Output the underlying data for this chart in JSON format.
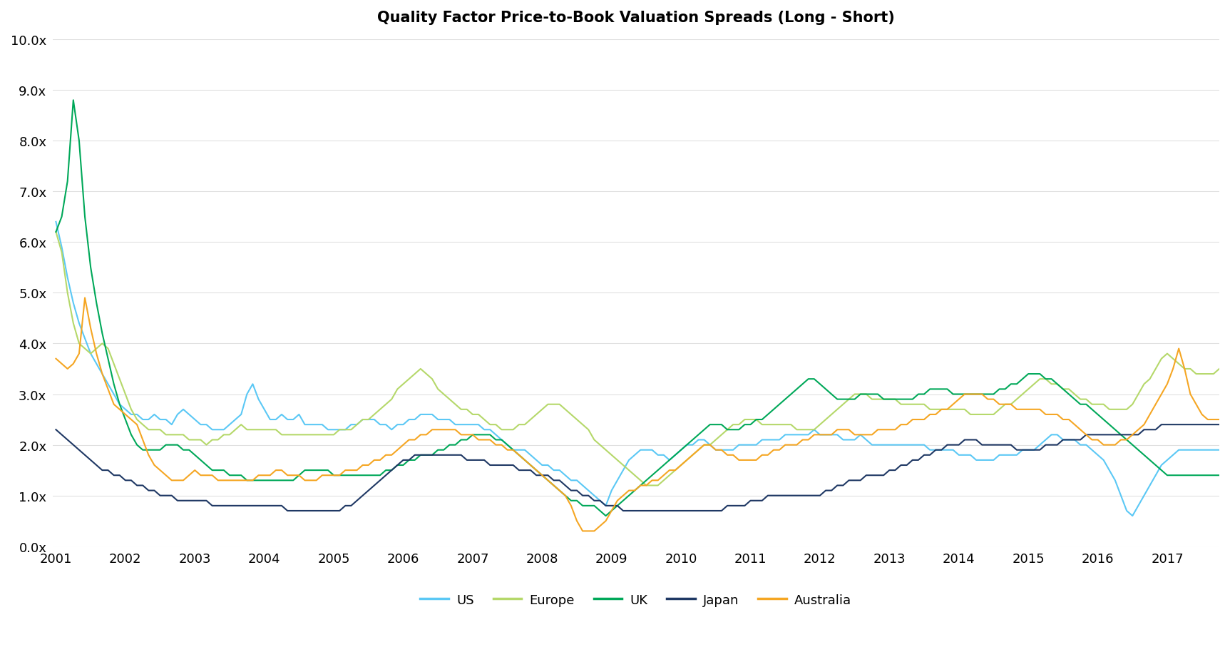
{
  "title": "Quality Factor Price-to-Book Valuation Spreads (Long - Short)",
  "title_fontsize": 15,
  "title_fontweight": "bold",
  "ylim": [
    0.0,
    10.0
  ],
  "yticks": [
    0.0,
    1.0,
    2.0,
    3.0,
    4.0,
    5.0,
    6.0,
    7.0,
    8.0,
    9.0,
    10.0
  ],
  "ytick_labels": [
    "0.0x",
    "1.0x",
    "2.0x",
    "3.0x",
    "4.0x",
    "5.0x",
    "6.0x",
    "7.0x",
    "8.0x",
    "9.0x",
    "10.0x"
  ],
  "background_color": "#ffffff",
  "legend_labels": [
    "US",
    "Europe",
    "UK",
    "Japan",
    "Australia"
  ],
  "line_colors": {
    "US": "#5BC8F5",
    "Europe": "#B5D86A",
    "UK": "#00A859",
    "Japan": "#1F3864",
    "Australia": "#F5A623"
  },
  "line_width": 1.5,
  "series": {
    "US": [
      6.4,
      5.9,
      5.3,
      4.8,
      4.4,
      4.1,
      3.8,
      3.6,
      3.4,
      3.2,
      3.0,
      2.8,
      2.7,
      2.6,
      2.6,
      2.5,
      2.5,
      2.6,
      2.5,
      2.5,
      2.4,
      2.6,
      2.7,
      2.6,
      2.5,
      2.4,
      2.4,
      2.3,
      2.3,
      2.3,
      2.4,
      2.5,
      2.6,
      3.0,
      3.2,
      2.9,
      2.7,
      2.5,
      2.5,
      2.6,
      2.5,
      2.5,
      2.6,
      2.4,
      2.4,
      2.4,
      2.4,
      2.3,
      2.3,
      2.3,
      2.3,
      2.4,
      2.4,
      2.5,
      2.5,
      2.5,
      2.4,
      2.4,
      2.3,
      2.4,
      2.4,
      2.5,
      2.5,
      2.6,
      2.6,
      2.6,
      2.5,
      2.5,
      2.5,
      2.4,
      2.4,
      2.4,
      2.4,
      2.4,
      2.3,
      2.3,
      2.2,
      2.1,
      2.0,
      1.9,
      1.9,
      1.9,
      1.8,
      1.7,
      1.6,
      1.6,
      1.5,
      1.5,
      1.4,
      1.3,
      1.3,
      1.2,
      1.1,
      1.0,
      0.9,
      0.8,
      1.1,
      1.3,
      1.5,
      1.7,
      1.8,
      1.9,
      1.9,
      1.9,
      1.8,
      1.8,
      1.7,
      1.8,
      1.9,
      2.0,
      2.0,
      2.1,
      2.1,
      2.0,
      1.9,
      1.9,
      1.9,
      1.9,
      2.0,
      2.0,
      2.0,
      2.0,
      2.1,
      2.1,
      2.1,
      2.1,
      2.2,
      2.2,
      2.2,
      2.2,
      2.2,
      2.3,
      2.2,
      2.2,
      2.2,
      2.2,
      2.1,
      2.1,
      2.1,
      2.2,
      2.1,
      2.0,
      2.0,
      2.0,
      2.0,
      2.0,
      2.0,
      2.0,
      2.0,
      2.0,
      2.0,
      1.9,
      1.9,
      1.9,
      1.9,
      1.9,
      1.8,
      1.8,
      1.8,
      1.7,
      1.7,
      1.7,
      1.7,
      1.8,
      1.8,
      1.8,
      1.8,
      1.9,
      1.9,
      1.9,
      2.0,
      2.1,
      2.2,
      2.2,
      2.1,
      2.1,
      2.1,
      2.0,
      2.0,
      1.9,
      1.8,
      1.7,
      1.5,
      1.3,
      1.0,
      0.7,
      0.6,
      0.8,
      1.0,
      1.2,
      1.4,
      1.6,
      1.7,
      1.8,
      1.9,
      1.9,
      1.9,
      1.9,
      1.9,
      1.9,
      1.9,
      1.9,
      1.9,
      1.9
    ],
    "Europe": [
      6.2,
      5.8,
      5.0,
      4.4,
      4.0,
      3.9,
      3.8,
      3.9,
      4.0,
      3.9,
      3.6,
      3.3,
      3.0,
      2.7,
      2.5,
      2.4,
      2.3,
      2.3,
      2.3,
      2.2,
      2.2,
      2.2,
      2.2,
      2.1,
      2.1,
      2.1,
      2.0,
      2.1,
      2.1,
      2.2,
      2.2,
      2.3,
      2.4,
      2.3,
      2.3,
      2.3,
      2.3,
      2.3,
      2.3,
      2.2,
      2.2,
      2.2,
      2.2,
      2.2,
      2.2,
      2.2,
      2.2,
      2.2,
      2.2,
      2.3,
      2.3,
      2.3,
      2.4,
      2.5,
      2.5,
      2.6,
      2.7,
      2.8,
      2.9,
      3.1,
      3.2,
      3.3,
      3.4,
      3.5,
      3.4,
      3.3,
      3.1,
      3.0,
      2.9,
      2.8,
      2.7,
      2.7,
      2.6,
      2.6,
      2.5,
      2.4,
      2.4,
      2.3,
      2.3,
      2.3,
      2.4,
      2.4,
      2.5,
      2.6,
      2.7,
      2.8,
      2.8,
      2.8,
      2.7,
      2.6,
      2.5,
      2.4,
      2.3,
      2.1,
      2.0,
      1.9,
      1.8,
      1.7,
      1.6,
      1.5,
      1.4,
      1.3,
      1.2,
      1.2,
      1.2,
      1.3,
      1.4,
      1.5,
      1.6,
      1.7,
      1.8,
      1.9,
      2.0,
      2.0,
      2.1,
      2.2,
      2.3,
      2.4,
      2.4,
      2.5,
      2.5,
      2.5,
      2.4,
      2.4,
      2.4,
      2.4,
      2.4,
      2.4,
      2.3,
      2.3,
      2.3,
      2.3,
      2.4,
      2.5,
      2.6,
      2.7,
      2.8,
      2.9,
      3.0,
      3.0,
      3.0,
      2.9,
      2.9,
      2.9,
      2.9,
      2.9,
      2.8,
      2.8,
      2.8,
      2.8,
      2.8,
      2.7,
      2.7,
      2.7,
      2.7,
      2.7,
      2.7,
      2.7,
      2.6,
      2.6,
      2.6,
      2.6,
      2.6,
      2.7,
      2.8,
      2.8,
      2.9,
      3.0,
      3.1,
      3.2,
      3.3,
      3.3,
      3.2,
      3.2,
      3.1,
      3.1,
      3.0,
      2.9,
      2.9,
      2.8,
      2.8,
      2.8,
      2.7,
      2.7,
      2.7,
      2.7,
      2.8,
      3.0,
      3.2,
      3.3,
      3.5,
      3.7,
      3.8,
      3.7,
      3.6,
      3.5,
      3.5,
      3.4,
      3.4,
      3.4,
      3.4,
      3.5,
      3.6,
      3.8
    ],
    "UK": [
      6.2,
      6.5,
      7.2,
      8.8,
      8.0,
      6.5,
      5.5,
      4.8,
      4.2,
      3.7,
      3.2,
      2.8,
      2.5,
      2.2,
      2.0,
      1.9,
      1.9,
      1.9,
      1.9,
      2.0,
      2.0,
      2.0,
      1.9,
      1.9,
      1.8,
      1.7,
      1.6,
      1.5,
      1.5,
      1.5,
      1.4,
      1.4,
      1.4,
      1.3,
      1.3,
      1.3,
      1.3,
      1.3,
      1.3,
      1.3,
      1.3,
      1.3,
      1.4,
      1.5,
      1.5,
      1.5,
      1.5,
      1.5,
      1.4,
      1.4,
      1.4,
      1.4,
      1.4,
      1.4,
      1.4,
      1.4,
      1.4,
      1.5,
      1.5,
      1.6,
      1.6,
      1.7,
      1.7,
      1.8,
      1.8,
      1.8,
      1.9,
      1.9,
      2.0,
      2.0,
      2.1,
      2.1,
      2.2,
      2.2,
      2.2,
      2.2,
      2.1,
      2.1,
      2.0,
      1.9,
      1.8,
      1.7,
      1.6,
      1.5,
      1.4,
      1.3,
      1.2,
      1.1,
      1.0,
      0.9,
      0.9,
      0.8,
      0.8,
      0.8,
      0.7,
      0.6,
      0.7,
      0.8,
      0.9,
      1.0,
      1.1,
      1.2,
      1.3,
      1.4,
      1.5,
      1.6,
      1.7,
      1.8,
      1.9,
      2.0,
      2.1,
      2.2,
      2.3,
      2.4,
      2.4,
      2.4,
      2.3,
      2.3,
      2.3,
      2.4,
      2.4,
      2.5,
      2.5,
      2.6,
      2.7,
      2.8,
      2.9,
      3.0,
      3.1,
      3.2,
      3.3,
      3.3,
      3.2,
      3.1,
      3.0,
      2.9,
      2.9,
      2.9,
      2.9,
      3.0,
      3.0,
      3.0,
      3.0,
      2.9,
      2.9,
      2.9,
      2.9,
      2.9,
      2.9,
      3.0,
      3.0,
      3.1,
      3.1,
      3.1,
      3.1,
      3.0,
      3.0,
      3.0,
      3.0,
      3.0,
      3.0,
      3.0,
      3.0,
      3.1,
      3.1,
      3.2,
      3.2,
      3.3,
      3.4,
      3.4,
      3.4,
      3.3,
      3.3,
      3.2,
      3.1,
      3.0,
      2.9,
      2.8,
      2.8,
      2.7,
      2.6,
      2.5,
      2.4,
      2.3,
      2.2,
      2.1,
      2.0,
      1.9,
      1.8,
      1.7,
      1.6,
      1.5,
      1.4,
      1.4,
      1.4,
      1.4,
      1.4,
      1.4,
      1.4,
      1.4,
      1.4,
      1.4,
      1.4,
      1.4
    ],
    "Japan": [
      2.3,
      2.2,
      2.1,
      2.0,
      1.9,
      1.8,
      1.7,
      1.6,
      1.5,
      1.5,
      1.4,
      1.4,
      1.3,
      1.3,
      1.2,
      1.2,
      1.1,
      1.1,
      1.0,
      1.0,
      1.0,
      0.9,
      0.9,
      0.9,
      0.9,
      0.9,
      0.9,
      0.8,
      0.8,
      0.8,
      0.8,
      0.8,
      0.8,
      0.8,
      0.8,
      0.8,
      0.8,
      0.8,
      0.8,
      0.8,
      0.7,
      0.7,
      0.7,
      0.7,
      0.7,
      0.7,
      0.7,
      0.7,
      0.7,
      0.7,
      0.8,
      0.8,
      0.9,
      1.0,
      1.1,
      1.2,
      1.3,
      1.4,
      1.5,
      1.6,
      1.7,
      1.7,
      1.8,
      1.8,
      1.8,
      1.8,
      1.8,
      1.8,
      1.8,
      1.8,
      1.8,
      1.7,
      1.7,
      1.7,
      1.7,
      1.6,
      1.6,
      1.6,
      1.6,
      1.6,
      1.5,
      1.5,
      1.5,
      1.4,
      1.4,
      1.4,
      1.3,
      1.3,
      1.2,
      1.1,
      1.1,
      1.0,
      1.0,
      0.9,
      0.9,
      0.8,
      0.8,
      0.8,
      0.7,
      0.7,
      0.7,
      0.7,
      0.7,
      0.7,
      0.7,
      0.7,
      0.7,
      0.7,
      0.7,
      0.7,
      0.7,
      0.7,
      0.7,
      0.7,
      0.7,
      0.7,
      0.8,
      0.8,
      0.8,
      0.8,
      0.9,
      0.9,
      0.9,
      1.0,
      1.0,
      1.0,
      1.0,
      1.0,
      1.0,
      1.0,
      1.0,
      1.0,
      1.0,
      1.1,
      1.1,
      1.2,
      1.2,
      1.3,
      1.3,
      1.3,
      1.4,
      1.4,
      1.4,
      1.4,
      1.5,
      1.5,
      1.6,
      1.6,
      1.7,
      1.7,
      1.8,
      1.8,
      1.9,
      1.9,
      2.0,
      2.0,
      2.0,
      2.1,
      2.1,
      2.1,
      2.0,
      2.0,
      2.0,
      2.0,
      2.0,
      2.0,
      1.9,
      1.9,
      1.9,
      1.9,
      1.9,
      2.0,
      2.0,
      2.0,
      2.1,
      2.1,
      2.1,
      2.1,
      2.2,
      2.2,
      2.2,
      2.2,
      2.2,
      2.2,
      2.2,
      2.2,
      2.2,
      2.2,
      2.3,
      2.3,
      2.3,
      2.4,
      2.4,
      2.4,
      2.4,
      2.4,
      2.4,
      2.4,
      2.4,
      2.4,
      2.4,
      2.4,
      2.4,
      2.4
    ],
    "Australia": [
      3.7,
      3.6,
      3.5,
      3.6,
      3.8,
      4.9,
      4.3,
      3.8,
      3.4,
      3.1,
      2.8,
      2.7,
      2.6,
      2.5,
      2.4,
      2.1,
      1.8,
      1.6,
      1.5,
      1.4,
      1.3,
      1.3,
      1.3,
      1.4,
      1.5,
      1.4,
      1.4,
      1.4,
      1.3,
      1.3,
      1.3,
      1.3,
      1.3,
      1.3,
      1.3,
      1.4,
      1.4,
      1.4,
      1.5,
      1.5,
      1.4,
      1.4,
      1.4,
      1.3,
      1.3,
      1.3,
      1.4,
      1.4,
      1.4,
      1.4,
      1.5,
      1.5,
      1.5,
      1.6,
      1.6,
      1.7,
      1.7,
      1.8,
      1.8,
      1.9,
      2.0,
      2.1,
      2.1,
      2.2,
      2.2,
      2.3,
      2.3,
      2.3,
      2.3,
      2.3,
      2.2,
      2.2,
      2.2,
      2.1,
      2.1,
      2.1,
      2.0,
      2.0,
      1.9,
      1.9,
      1.8,
      1.7,
      1.6,
      1.5,
      1.4,
      1.3,
      1.2,
      1.1,
      1.0,
      0.8,
      0.5,
      0.3,
      0.3,
      0.3,
      0.4,
      0.5,
      0.7,
      0.9,
      1.0,
      1.1,
      1.1,
      1.2,
      1.2,
      1.3,
      1.3,
      1.4,
      1.5,
      1.5,
      1.6,
      1.7,
      1.8,
      1.9,
      2.0,
      2.0,
      1.9,
      1.9,
      1.8,
      1.8,
      1.7,
      1.7,
      1.7,
      1.7,
      1.8,
      1.8,
      1.9,
      1.9,
      2.0,
      2.0,
      2.0,
      2.1,
      2.1,
      2.2,
      2.2,
      2.2,
      2.2,
      2.3,
      2.3,
      2.3,
      2.2,
      2.2,
      2.2,
      2.2,
      2.3,
      2.3,
      2.3,
      2.3,
      2.4,
      2.4,
      2.5,
      2.5,
      2.5,
      2.6,
      2.6,
      2.7,
      2.7,
      2.8,
      2.9,
      3.0,
      3.0,
      3.0,
      3.0,
      2.9,
      2.9,
      2.8,
      2.8,
      2.8,
      2.7,
      2.7,
      2.7,
      2.7,
      2.7,
      2.6,
      2.6,
      2.6,
      2.5,
      2.5,
      2.4,
      2.3,
      2.2,
      2.1,
      2.1,
      2.0,
      2.0,
      2.0,
      2.1,
      2.1,
      2.2,
      2.3,
      2.4,
      2.6,
      2.8,
      3.0,
      3.2,
      3.5,
      3.9,
      3.5,
      3.0,
      2.8,
      2.6,
      2.5,
      2.5,
      2.5,
      2.5,
      2.5
    ]
  },
  "x_start_year": 2001,
  "x_end_year": 2017,
  "x_tick_years": [
    2001,
    2002,
    2003,
    2004,
    2005,
    2006,
    2007,
    2008,
    2009,
    2010,
    2011,
    2012,
    2013,
    2014,
    2015,
    2016,
    2017
  ],
  "grid_color": "#e0e0e0",
  "grid_linewidth": 0.8,
  "tick_fontsize": 13,
  "legend_fontsize": 13
}
